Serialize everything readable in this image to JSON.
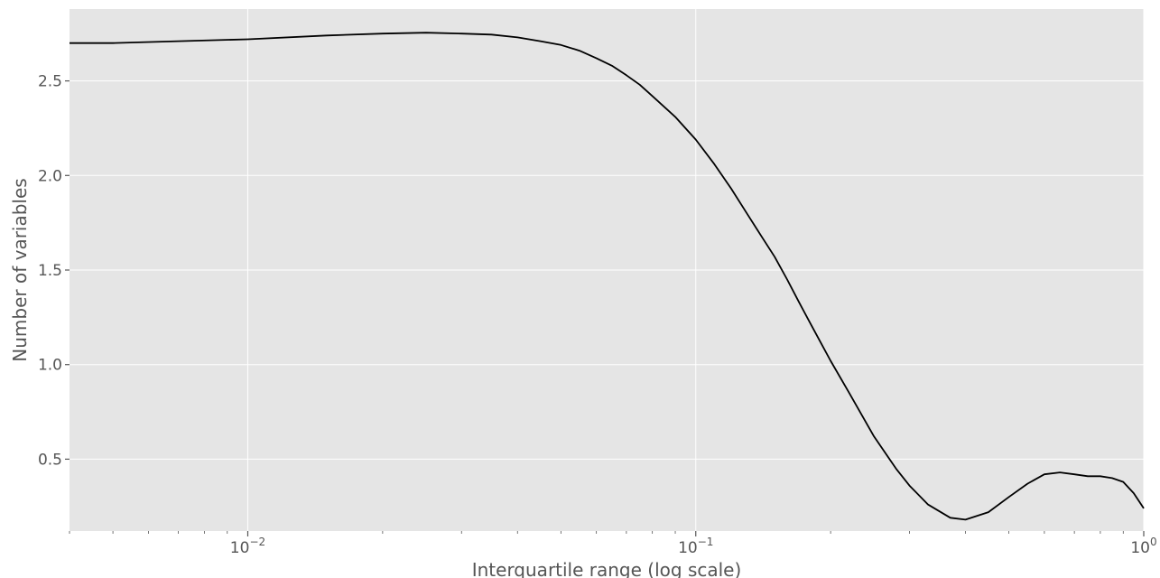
{
  "chart_data": {
    "type": "line",
    "title": "",
    "xlabel": "Interquartile range (log scale)",
    "ylabel": "Number of variables",
    "x_scale": "log",
    "xlim": [
      0.004,
      1.0
    ],
    "ylim": [
      0.12,
      2.88
    ],
    "grid": true,
    "background_color": "#e5e5e5",
    "grid_color": "#ffffff",
    "line_color": "#000000",
    "x_ticks": [
      {
        "value": 0.01,
        "base": "10",
        "exp": "−2"
      },
      {
        "value": 0.1,
        "base": "10",
        "exp": "−1"
      },
      {
        "value": 1.0,
        "base": "10",
        "exp": "0"
      }
    ],
    "y_ticks": [
      {
        "value": 0.5,
        "label": "0.5"
      },
      {
        "value": 1.0,
        "label": "1.0"
      },
      {
        "value": 1.5,
        "label": "1.5"
      },
      {
        "value": 2.0,
        "label": "2.0"
      },
      {
        "value": 2.5,
        "label": "2.5"
      }
    ],
    "series": [
      {
        "x": [
          0.004,
          0.005,
          0.007,
          0.01,
          0.015,
          0.02,
          0.025,
          0.03,
          0.035,
          0.04,
          0.045,
          0.05,
          0.055,
          0.06,
          0.065,
          0.07,
          0.075,
          0.08,
          0.09,
          0.1,
          0.11,
          0.12,
          0.13,
          0.14,
          0.15,
          0.16,
          0.17,
          0.18,
          0.2,
          0.22,
          0.25,
          0.28,
          0.3,
          0.33,
          0.37,
          0.4,
          0.45,
          0.5,
          0.55,
          0.6,
          0.65,
          0.7,
          0.75,
          0.8,
          0.85,
          0.9,
          0.95,
          1.0
        ],
        "y": [
          2.7,
          2.7,
          2.71,
          2.72,
          2.74,
          2.75,
          2.755,
          2.75,
          2.745,
          2.73,
          2.71,
          2.69,
          2.66,
          2.62,
          2.58,
          2.53,
          2.48,
          2.42,
          2.31,
          2.19,
          2.06,
          1.93,
          1.8,
          1.68,
          1.57,
          1.45,
          1.33,
          1.22,
          1.02,
          0.85,
          0.62,
          0.45,
          0.36,
          0.26,
          0.19,
          0.18,
          0.22,
          0.3,
          0.37,
          0.42,
          0.43,
          0.42,
          0.41,
          0.41,
          0.4,
          0.38,
          0.32,
          0.24
        ]
      }
    ]
  }
}
